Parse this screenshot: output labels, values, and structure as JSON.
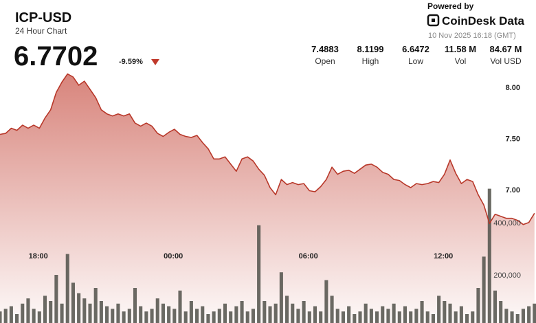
{
  "header": {
    "title": "ICP-USD",
    "subtitle": "24 Hour Chart",
    "price": "6.7702",
    "change": "-9.59%"
  },
  "stats": [
    {
      "value": "7.4883",
      "label": "Open"
    },
    {
      "value": "8.1199",
      "label": "High"
    },
    {
      "value": "6.6472",
      "label": "Low"
    },
    {
      "value": "11.58 M",
      "label": "Vol"
    },
    {
      "value": "84.67 M",
      "label": "Vol USD"
    }
  ],
  "branding": {
    "powered_by": "Powered by",
    "brand": "CoinDesk Data",
    "timestamp": "10 Nov 2025 16:18 (GMT)"
  },
  "chart_data": {
    "type": "line",
    "x": [
      0,
      0.25,
      0.5,
      0.75,
      1,
      1.25,
      1.5,
      1.75,
      2,
      2.25,
      2.5,
      2.75,
      3,
      3.25,
      3.5,
      3.75,
      4,
      4.25,
      4.5,
      4.75,
      5,
      5.25,
      5.5,
      5.75,
      6,
      6.25,
      6.5,
      6.75,
      7,
      7.25,
      7.5,
      7.75,
      8,
      8.25,
      8.5,
      8.75,
      9,
      9.25,
      9.5,
      9.75,
      10,
      10.25,
      10.5,
      10.75,
      11,
      11.25,
      11.5,
      11.75,
      12,
      12.25,
      12.5,
      12.75,
      13,
      13.25,
      13.5,
      13.75,
      14,
      14.25,
      14.5,
      14.75,
      15,
      15.25,
      15.5,
      15.75,
      16,
      16.25,
      16.5,
      16.75,
      17,
      17.25,
      17.5,
      17.75,
      18,
      18.25,
      18.5,
      18.75,
      19,
      19.25,
      19.5,
      19.75,
      20,
      20.25,
      20.5,
      20.75,
      21,
      21.25,
      21.5,
      21.75,
      22,
      22.25,
      22.5,
      22.75,
      23,
      23.25,
      23.5,
      23.75
    ],
    "series": [
      {
        "color": "#b8382a",
        "values": [
          7.54,
          7.55,
          7.6,
          7.58,
          7.63,
          7.6,
          7.63,
          7.6,
          7.7,
          7.78,
          7.95,
          8.05,
          8.13,
          8.1,
          8.02,
          8.06,
          7.98,
          7.9,
          7.78,
          7.74,
          7.72,
          7.74,
          7.72,
          7.74,
          7.65,
          7.62,
          7.65,
          7.62,
          7.55,
          7.52,
          7.56,
          7.59,
          7.54,
          7.52,
          7.51,
          7.53,
          7.46,
          7.4,
          7.3,
          7.3,
          7.32,
          7.25,
          7.18,
          7.3,
          7.32,
          7.28,
          7.2,
          7.14,
          7.02,
          6.95,
          7.1,
          7.05,
          7.07,
          7.05,
          7.06,
          6.99,
          6.98,
          7.03,
          7.1,
          7.22,
          7.15,
          7.18,
          7.19,
          7.16,
          7.2,
          7.24,
          7.25,
          7.22,
          7.17,
          7.15,
          7.1,
          7.09,
          7.05,
          7.02,
          7.06,
          7.05,
          7.06,
          7.08,
          7.07,
          7.15,
          7.29,
          7.16,
          7.06,
          7.1,
          7.08,
          6.95,
          6.85,
          6.67,
          6.76,
          6.74,
          6.72,
          6.72,
          6.7,
          6.66,
          6.68,
          6.77
        ]
      },
      {
        "type": "bar",
        "axis": "y2",
        "color": "#55554e",
        "values": [
          60000,
          70000,
          80000,
          50000,
          90000,
          110000,
          70000,
          60000,
          120000,
          100000,
          200000,
          90000,
          280000,
          170000,
          130000,
          110000,
          90000,
          150000,
          100000,
          80000,
          70000,
          90000,
          60000,
          70000,
          150000,
          80000,
          60000,
          70000,
          110000,
          90000,
          80000,
          70000,
          140000,
          60000,
          100000,
          70000,
          80000,
          50000,
          60000,
          70000,
          90000,
          60000,
          80000,
          100000,
          60000,
          70000,
          390000,
          100000,
          80000,
          90000,
          210000,
          120000,
          90000,
          70000,
          100000,
          60000,
          80000,
          60000,
          180000,
          120000,
          70000,
          60000,
          80000,
          50000,
          60000,
          90000,
          70000,
          60000,
          80000,
          70000,
          90000,
          60000,
          80000,
          60000,
          70000,
          100000,
          60000,
          50000,
          120000,
          100000,
          90000,
          60000,
          80000,
          50000,
          60000,
          150000,
          270000,
          530000,
          140000,
          100000,
          70000,
          60000,
          50000,
          70000,
          80000,
          90000
        ]
      }
    ],
    "xlim": [
      0,
      24
    ],
    "xticks": [
      {
        "value": 1.7,
        "label": "18:00"
      },
      {
        "value": 7.7,
        "label": "00:00"
      },
      {
        "value": 13.7,
        "label": "06:00"
      },
      {
        "value": 19.7,
        "label": "12:00"
      }
    ],
    "ylim": [
      6.0,
      8.5
    ],
    "yticks": [
      {
        "value": 8,
        "label": "8.00"
      },
      {
        "value": 7.5,
        "label": "7.50"
      },
      {
        "value": 7,
        "label": "7.00"
      }
    ],
    "y2lim": [
      0,
      1200000
    ],
    "y2ticks": [
      {
        "value": 400000,
        "label": "400,000"
      },
      {
        "value": 200000,
        "label": "200,000"
      }
    ]
  }
}
